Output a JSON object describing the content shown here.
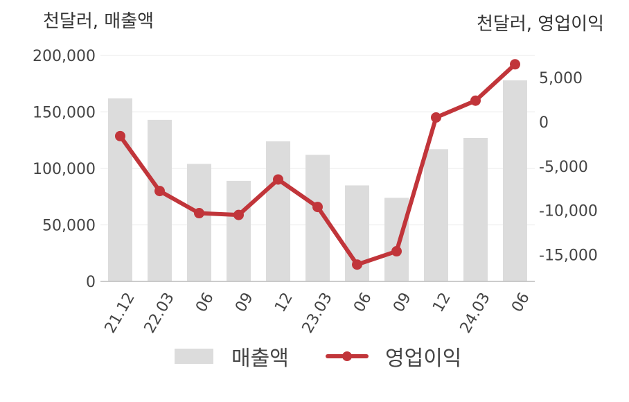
{
  "chart_data": {
    "type": "bar+line",
    "categories": [
      "21.12",
      "22.03",
      "06",
      "09",
      "12",
      "23.03",
      "06",
      "09",
      "12",
      "24.03",
      "06"
    ],
    "series": [
      {
        "name": "매출액",
        "type": "bar",
        "axis": "left",
        "values": [
          162000,
          143000,
          104000,
          89000,
          124000,
          112000,
          85000,
          74000,
          117000,
          127000,
          178000
        ]
      },
      {
        "name": "영업이익",
        "type": "line",
        "axis": "right",
        "values": [
          -1600,
          -7800,
          -10300,
          -10500,
          -6500,
          -9600,
          -16100,
          -14600,
          500,
          2400,
          6500
        ]
      }
    ],
    "y_left": {
      "unit_label": "천달러, 매출액",
      "min": 0,
      "max": 200000,
      "ticks": [
        0,
        50000,
        100000,
        150000,
        200000
      ],
      "tick_labels": [
        "0",
        "50,000",
        "100,000",
        "150,000",
        "200,000"
      ]
    },
    "y_right": {
      "unit_label": "천달러, 영업이익",
      "min": -18000,
      "max": 7500,
      "ticks": [
        -15000,
        -10000,
        -5000,
        0,
        5000
      ],
      "tick_labels": [
        "-15,000",
        "-10,000",
        "-5,000",
        "0",
        "5,000"
      ]
    },
    "grid": true,
    "legend_position": "bottom",
    "colors": {
      "bar": "#dcdcdc",
      "line": "#c1353a",
      "grid": "#e8e8e8",
      "axis": "#bbbbbb"
    }
  },
  "legend": {
    "bar_label": "매출액",
    "line_label": "영업이익"
  }
}
